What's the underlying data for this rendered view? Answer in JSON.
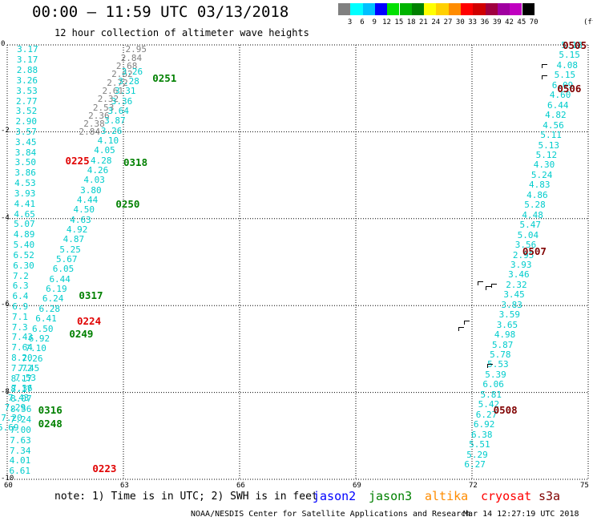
{
  "title": "00:00 – 11:59 UTC 03/13/2018",
  "subtitle": "12 hour collection of altimeter wave heights",
  "legend": {
    "colors": [
      "#808080",
      "#00ffff",
      "#00c0ff",
      "#0000ff",
      "#00e000",
      "#00b400",
      "#008000",
      "#ffff00",
      "#ffd000",
      "#ff8c00",
      "#ff0000",
      "#d00000",
      "#a00040",
      "#a000a0",
      "#c000c0",
      "#000000"
    ],
    "labels": [
      "3",
      "6",
      "9",
      "12",
      "15",
      "18",
      "21",
      "24",
      "27",
      "30",
      "33",
      "36",
      "39",
      "42",
      "45",
      "70"
    ],
    "unit": "(ft)"
  },
  "axes": {
    "y_ticks": [
      "0",
      "-2",
      "-4",
      "-6",
      "-8",
      "-10"
    ],
    "x_ticks": [
      "60",
      "63",
      "66",
      "69",
      "72",
      "75"
    ]
  },
  "chart_data": {
    "type": "scatter",
    "xlim": [
      60,
      75
    ],
    "ylim": [
      -10,
      0
    ],
    "grid": true,
    "passes": [
      {
        "label": "0251",
        "color": "#008000",
        "x": 63.75,
        "y": -0.75
      },
      {
        "label": "0318",
        "color": "#008000",
        "x": 63.0,
        "y": -2.7
      },
      {
        "label": "0225",
        "color": "#e00000",
        "x": 61.5,
        "y": -2.65
      },
      {
        "label": "0250",
        "color": "#008000",
        "x": 62.8,
        "y": -3.65
      },
      {
        "label": "0317",
        "color": "#008000",
        "x": 61.85,
        "y": -5.75
      },
      {
        "label": "0224",
        "color": "#e00000",
        "x": 61.8,
        "y": -6.35
      },
      {
        "label": "0249",
        "color": "#008000",
        "x": 61.6,
        "y": -6.65
      },
      {
        "label": "0316",
        "color": "#008000",
        "x": 60.8,
        "y": -8.4
      },
      {
        "label": "0248",
        "color": "#008000",
        "x": 60.8,
        "y": -8.7
      },
      {
        "label": "0223",
        "color": "#e00000",
        "x": 62.2,
        "y": -9.75
      },
      {
        "label": "0505",
        "color": "#800000",
        "x": 74.5,
        "y": 0.0
      },
      {
        "label": "0506",
        "color": "#800000",
        "x": 74.2,
        "y": -1.0
      },
      {
        "label": "0507",
        "color": "#800000",
        "x": 73.3,
        "y": -4.75
      },
      {
        "label": "0508",
        "color": "#800000",
        "x": 72.55,
        "y": -8.4
      }
    ],
    "tracks": [
      {
        "name": "cryosat-west",
        "color": "#00cccc",
        "x0": 60.5,
        "y0": -0.1,
        "x1": 60.3,
        "y1": -9.8,
        "values": [
          "3.17",
          "3.17",
          "2.88",
          "3.26",
          "3.53",
          "2.77",
          "3.52",
          "2.90",
          "3.57",
          "3.45",
          "3.84",
          "3.50",
          "3.86",
          "4.53",
          "3.93",
          "4.41",
          "4.65",
          "5.07",
          "4.89",
          "5.40",
          "6.52",
          "6.30",
          "7.2",
          "6.3",
          "6.4",
          "6.9",
          "7.1",
          "7.3",
          "7.43",
          "7.64",
          "8.20",
          "7.72",
          "8.17",
          "8.17",
          "8.07",
          "8.56",
          "7.24",
          "7.00",
          "7.63",
          "7.34",
          "4.01",
          "6.61"
        ]
      },
      {
        "name": "s3a-west",
        "color": "#808080",
        "x0": 63.3,
        "y0": -0.1,
        "x1": 62.1,
        "y1": -2.0,
        "values": [
          "2.95",
          "2.84",
          "2.68",
          "2.62",
          "2.72",
          "2.61",
          "2.32",
          "2.53",
          "2.36",
          "2.38",
          "2.84"
        ]
      },
      {
        "name": "jason3-west",
        "color": "#00cccc",
        "x0": 63.2,
        "y0": -0.6,
        "x1": 60.0,
        "y1": -8.8,
        "values": [
          "3.26",
          "3.28",
          "3.31",
          "3.36",
          "3.64",
          "3.87",
          "3.26",
          "4.10",
          "4.05",
          "4.28",
          "4.26",
          "4.03",
          "3.80",
          "4.44",
          "4.50",
          "4.63",
          "4.92",
          "4.87",
          "5.25",
          "5.67",
          "6.05",
          "6.44",
          "6.19",
          "6.24",
          "6.28",
          "6.41",
          "6.50",
          "6.92",
          "7.10",
          "7.26",
          "7.45",
          "7.53",
          "7.36",
          "7.43",
          "7.29",
          "7.20",
          "5.69"
        ]
      },
      {
        "name": "cryosat-east",
        "color": "#00cccc",
        "x0": 74.55,
        "y0": 0.0,
        "x1": 72.05,
        "y1": -9.65,
        "values": [
          "5.18",
          "5.15",
          "4.08",
          "5.15",
          "6.09",
          "4.60",
          "6.44",
          "4.82",
          "4.56",
          "5.11",
          "5.13",
          "5.12",
          "4.30",
          "5.24",
          "4.83",
          "4.86",
          "5.28",
          "4.48",
          "5.47",
          "5.04",
          "3.56",
          "2.95",
          "3.93",
          "3.46",
          "2.32",
          "3.45",
          "3.83",
          "3.59",
          "3.65",
          "4.98",
          "5.87",
          "5.78",
          "5.53",
          "5.39",
          "6.06",
          "5.81",
          "5.42",
          "6.27",
          "6.92",
          "6.38",
          "5.51",
          "5.29",
          "6.27"
        ]
      }
    ],
    "land": [
      {
        "x": 73.8,
        "y": -0.45
      },
      {
        "x": 73.8,
        "y": -0.7
      },
      {
        "x": 72.15,
        "y": -5.45
      },
      {
        "x": 72.35,
        "y": -5.55
      },
      {
        "x": 72.5,
        "y": -5.5
      },
      {
        "x": 71.8,
        "y": -6.35
      },
      {
        "x": 71.65,
        "y": -6.5
      },
      {
        "x": 72.4,
        "y": -7.35
      }
    ]
  },
  "note": "note: 1) Time is in UTC; 2) SWH is in feet",
  "satellites": [
    {
      "name": "jason2",
      "color": "#0000ff"
    },
    {
      "name": "jason3",
      "color": "#008000"
    },
    {
      "name": "altika",
      "color": "#ff8c00"
    },
    {
      "name": "cryosat",
      "color": "#ff0000"
    },
    {
      "name": "s3a",
      "color": "#800000"
    }
  ],
  "credit": "NOAA/NESDIS Center for Satellite Applications and Research",
  "timestamp": "Mar 14 12:27:19 UTC 2018"
}
